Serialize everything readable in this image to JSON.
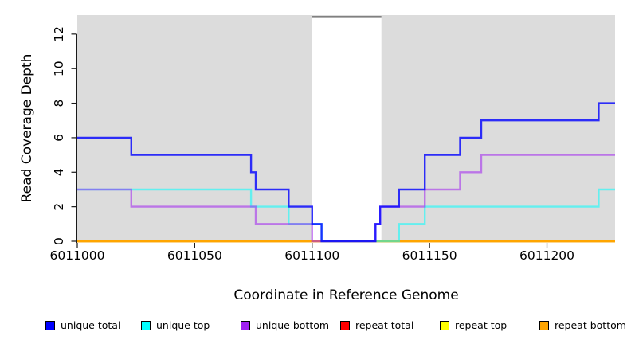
{
  "chart_data": {
    "type": "line",
    "subtype": "step",
    "title": "",
    "xlabel": "Coordinate in Reference Genome",
    "ylabel": "Read Coverage Depth",
    "xlim": [
      6011000,
      6011229
    ],
    "ylim": [
      0,
      13.1
    ],
    "x_ticks": [
      6011000,
      6011050,
      6011100,
      6011150,
      6011200
    ],
    "y_ticks": [
      0,
      2,
      4,
      6,
      8,
      10,
      12
    ],
    "panel_bg": "#dcdcdc",
    "axis_color": "#1a1a1a",
    "tick_label_color": "#000000",
    "gap_band": {
      "x_start": 6011100,
      "x_end": 6011129.5,
      "fill": "#ffffff",
      "top_border": "#808080"
    },
    "grid": false,
    "legend_position": "bottom",
    "series": [
      {
        "name": "repeat total",
        "color": "#FF0000",
        "opacity": 1,
        "points": [
          [
            6011000,
            0
          ],
          [
            6011229,
            0
          ]
        ]
      },
      {
        "name": "repeat top",
        "color": "#FFFF00",
        "opacity": 1,
        "points": [
          [
            6011000,
            0
          ],
          [
            6011229,
            0
          ]
        ]
      },
      {
        "name": "repeat bottom",
        "color": "#FFA500",
        "opacity": 1,
        "points": [
          [
            6011000,
            0
          ],
          [
            6011229,
            0
          ]
        ]
      },
      {
        "name": "unique top",
        "color": "#00FFFF",
        "opacity": 0.55,
        "points": [
          [
            6011000,
            3
          ],
          [
            6011074,
            2
          ],
          [
            6011090,
            1
          ],
          [
            6011104,
            0
          ],
          [
            6011137,
            1
          ],
          [
            6011148,
            2
          ],
          [
            6011222,
            3
          ],
          [
            6011229,
            3
          ]
        ]
      },
      {
        "name": "unique bottom",
        "color": "#A020F0",
        "opacity": 0.55,
        "points": [
          [
            6011000,
            3
          ],
          [
            6011023,
            2
          ],
          [
            6011076,
            1
          ],
          [
            6011100,
            0
          ],
          [
            6011127,
            1
          ],
          [
            6011129,
            2
          ],
          [
            6011148,
            3
          ],
          [
            6011163,
            4
          ],
          [
            6011172,
            5
          ],
          [
            6011229,
            5
          ]
        ]
      },
      {
        "name": "unique total",
        "color": "#0000FF",
        "opacity": 0.8,
        "points": [
          [
            6011000,
            6
          ],
          [
            6011023,
            5
          ],
          [
            6011074,
            4
          ],
          [
            6011076,
            3
          ],
          [
            6011090,
            2
          ],
          [
            6011100,
            1
          ],
          [
            6011104,
            0
          ],
          [
            6011127,
            1
          ],
          [
            6011129,
            2
          ],
          [
            6011137,
            3
          ],
          [
            6011148,
            5
          ],
          [
            6011163,
            6
          ],
          [
            6011172,
            7
          ],
          [
            6011222,
            8
          ],
          [
            6011229,
            8
          ]
        ]
      }
    ],
    "legend": [
      {
        "label": "unique total",
        "color": "#0000FF"
      },
      {
        "label": "unique top",
        "color": "#00FFFF"
      },
      {
        "label": "unique bottom",
        "color": "#A020F0"
      },
      {
        "label": "repeat total",
        "color": "#FF0000"
      },
      {
        "label": "repeat top",
        "color": "#FFFF00"
      },
      {
        "label": "repeat bottom",
        "color": "#FFA500"
      }
    ]
  }
}
